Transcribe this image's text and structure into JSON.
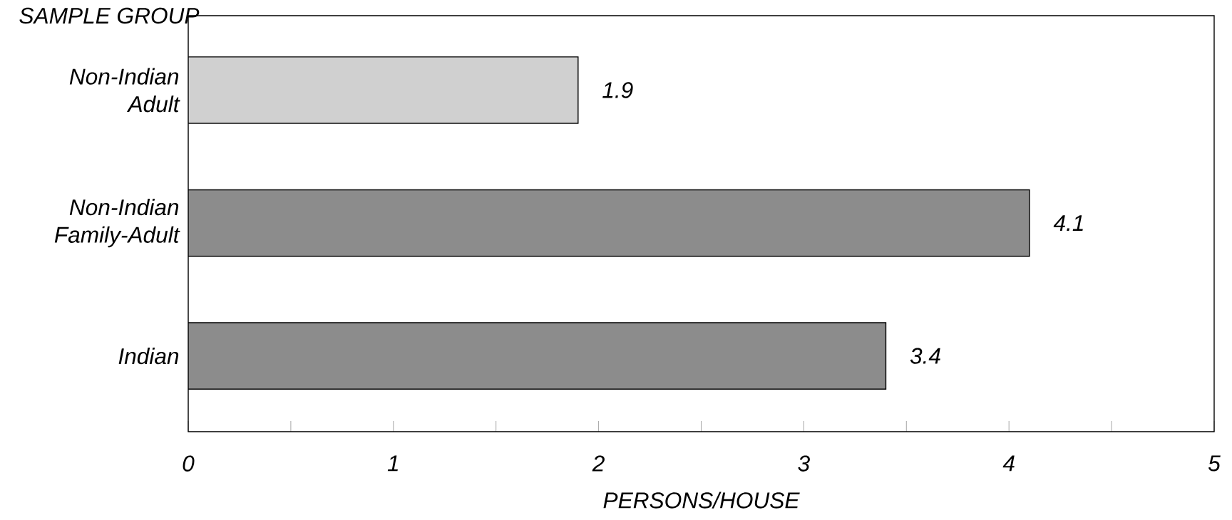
{
  "chart_data": {
    "type": "bar",
    "orientation": "horizontal",
    "categories": [
      "Non-Indian Adult",
      "Non-Indian Family-Adult",
      "Indian"
    ],
    "values": [
      1.9,
      4.1,
      3.4
    ],
    "colors": [
      "#d0d0d0",
      "#8c8c8c",
      "#8c8c8c"
    ],
    "xlim": [
      0,
      5
    ],
    "xticks": [
      0,
      {
        "value": 0.5,
        "label": null
      },
      1,
      {
        "value": 1.5,
        "label": null
      },
      2,
      {
        "value": 2.5,
        "label": null
      },
      3,
      {
        "value": 3.5,
        "label": null
      },
      4,
      {
        "value": 4.5,
        "label": null
      },
      5
    ],
    "xlabel": "PERSONS/HOUSE",
    "ylabel": "SAMPLE GROUP",
    "data_labels": true,
    "grid": false
  }
}
